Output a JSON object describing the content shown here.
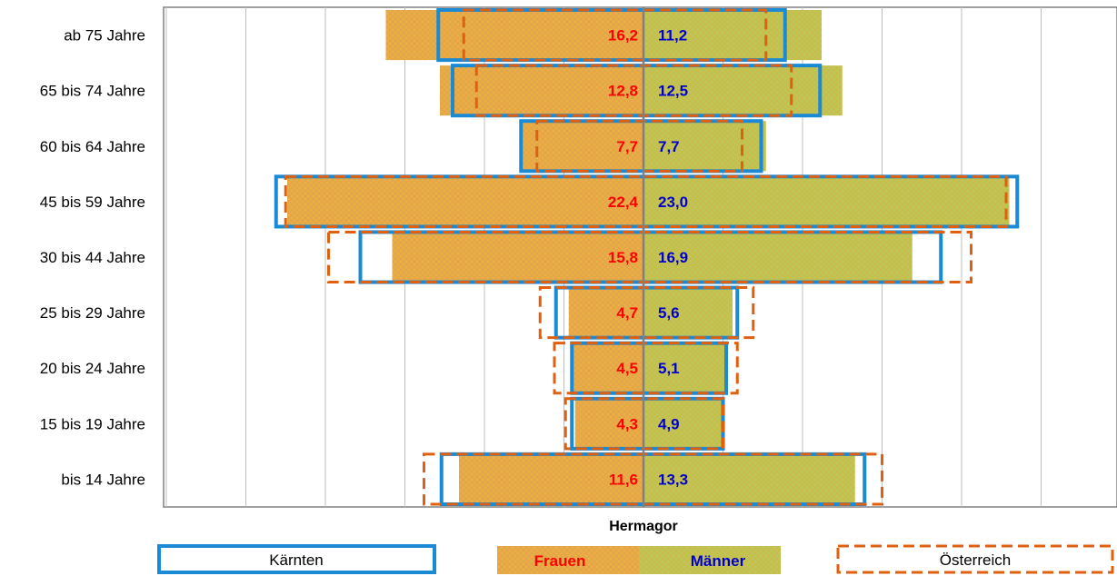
{
  "chart_data": {
    "type": "bar",
    "subtitle": "Hermagor",
    "categories": [
      "ab 75 Jahre",
      "65 bis 74 Jahre",
      "60 bis 64 Jahre",
      "45 bis 59 Jahre",
      "30 bis 44 Jahre",
      "25 bis 29 Jahre",
      "20 bis 24 Jahre",
      "15 bis 19 Jahre",
      "bis 14 Jahre"
    ],
    "series": [
      {
        "name": "Frauen",
        "values": [
          16.2,
          12.8,
          7.7,
          22.4,
          15.8,
          4.7,
          4.5,
          4.3,
          11.6
        ],
        "labels": [
          "16,2",
          "12,8",
          "7,7",
          "22,4",
          "15,8",
          "4,7",
          "4,5",
          "4,3",
          "11,6"
        ],
        "color": "#e8b040",
        "label_color": "#ff0000"
      },
      {
        "name": "Männer",
        "values": [
          11.2,
          12.5,
          7.7,
          23.0,
          16.9,
          5.6,
          5.1,
          4.9,
          13.3
        ],
        "labels": [
          "11,2",
          "12,5",
          "7,7",
          "23,0",
          "16,9",
          "5,6",
          "5,1",
          "4,9",
          "13,3"
        ],
        "color": "#bcc855",
        "label_color": "#0000cc"
      }
    ],
    "comparison": [
      {
        "name": "Kärnten",
        "style": "solid",
        "color": "#1a8ad4",
        "frauen": [
          12.9,
          12.0,
          7.7,
          23.1,
          17.8,
          5.5,
          4.5,
          4.5,
          12.7
        ],
        "maenner": [
          8.9,
          11.1,
          7.4,
          23.5,
          18.7,
          5.9,
          5.2,
          5.0,
          13.9
        ]
      },
      {
        "name": "Österreich",
        "style": "dashed",
        "color": "#e06010",
        "frauen": [
          11.3,
          10.5,
          6.7,
          22.5,
          19.8,
          6.5,
          5.6,
          4.9,
          13.8
        ],
        "maenner": [
          7.7,
          9.3,
          6.2,
          22.8,
          20.6,
          6.9,
          5.9,
          5.0,
          15.0
        ]
      }
    ],
    "xlim": [
      -30,
      30
    ],
    "grid": true,
    "legend_position": "bottom"
  }
}
